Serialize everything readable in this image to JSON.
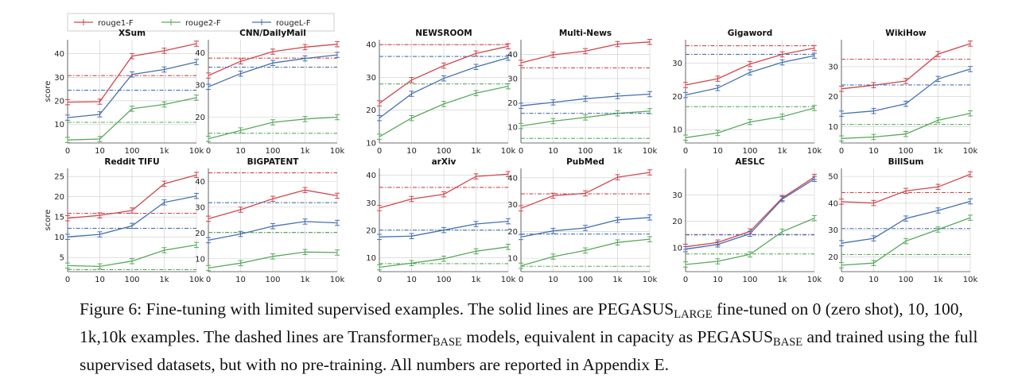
{
  "legend": [
    "rouge1-F",
    "rouge2-F",
    "rougeL-F"
  ],
  "colors": {
    "rouge1": "#d0474e",
    "rouge2": "#59a95c",
    "rougeL": "#4570b0",
    "grid": "#cccccc",
    "axis": "#444444"
  },
  "y_axis_label": "score",
  "x_ticks": [
    "0",
    "10",
    "100",
    "1k",
    "10k"
  ],
  "caption": {
    "label": "Figure 6:",
    "part1": " Fine-tuning with limited supervised examples. The solid lines are PEGASUS",
    "sub1": "LARGE",
    "part2": " fine-tuned on 0 (zero shot), 10, 100, 1k,10k examples. The dashed lines are Transformer",
    "sub2": "BASE",
    "part3": " models, equivalent in capacity as PEGASUS",
    "sub3": "BASE",
    "part4": " and trained using the full supervised datasets, but with no pre-training. All numbers are reported in Appendix E."
  },
  "chart_data": [
    {
      "type": "line",
      "title": "XSum",
      "x": [
        "0",
        "10",
        "100",
        "1k",
        "10k"
      ],
      "ylim": [
        2,
        46
      ],
      "yticks": [
        10,
        20,
        30,
        40
      ],
      "series": [
        {
          "name": "rouge1-F",
          "values": [
            19.4,
            19.6,
            39.0,
            41.3,
            44.3
          ],
          "baseline": [
            30.7
          ]
        },
        {
          "name": "rouge2-F",
          "values": [
            3.3,
            3.7,
            16.6,
            18.4,
            21.3
          ],
          "baseline": [
            10.8
          ]
        },
        {
          "name": "rougeL-F",
          "values": [
            12.8,
            14.2,
            31.2,
            33.3,
            36.5
          ],
          "baseline": [
            24.5
          ]
        }
      ]
    },
    {
      "type": "line",
      "title": "CNN/DailyMail",
      "x": [
        "0",
        "10",
        "100",
        "1k",
        "10k"
      ],
      "ylim": [
        12,
        44
      ],
      "yticks": [
        20,
        30,
        40
      ],
      "series": [
        {
          "name": "rouge1-F",
          "values": [
            32.9,
            37.3,
            40.3,
            41.7,
            42.6
          ],
          "baseline": [
            38.3
          ]
        },
        {
          "name": "rouge2-F",
          "values": [
            13.3,
            15.9,
            18.4,
            19.4,
            20.0
          ],
          "baseline": [
            15.0
          ]
        },
        {
          "name": "rougeL-F",
          "values": [
            29.4,
            33.5,
            36.8,
            38.2,
            39.3
          ],
          "baseline": [
            35.5
          ]
        }
      ]
    },
    {
      "type": "line",
      "title": "NEWSROOM",
      "x": [
        "0",
        "10",
        "100",
        "1k",
        "10k"
      ],
      "ylim": [
        10,
        41.5
      ],
      "yticks": [
        10,
        20,
        30,
        40
      ],
      "series": [
        {
          "name": "rouge1-F",
          "values": [
            22.1,
            29.2,
            33.6,
            37.3,
            39.5
          ],
          "baseline": [
            40.0
          ]
        },
        {
          "name": "rouge2-F",
          "values": [
            11.9,
            17.6,
            21.9,
            25.2,
            27.3
          ],
          "baseline": [
            28.0
          ]
        },
        {
          "name": "rougeL-F",
          "values": [
            17.6,
            25.0,
            29.7,
            33.2,
            36.0
          ],
          "baseline": [
            36.4
          ]
        }
      ]
    },
    {
      "type": "line",
      "title": "Multi-News",
      "x": [
        "0",
        "10",
        "100",
        "1k",
        "10k"
      ],
      "ylim": [
        3.5,
        46
      ],
      "yticks": [
        10,
        20,
        30,
        40
      ],
      "series": [
        {
          "name": "rouge1-F",
          "values": [
            36.5,
            39.8,
            41.3,
            44.2,
            45.1
          ],
          "baseline": [
            34.4
          ]
        },
        {
          "name": "rouge2-F",
          "values": [
            10.5,
            12.5,
            14.0,
            15.7,
            16.6
          ],
          "baseline": [
            5.4
          ]
        },
        {
          "name": "rougeL-F",
          "values": [
            18.8,
            20.2,
            21.7,
            22.8,
            23.6
          ],
          "baseline": [
            15.7
          ]
        }
      ]
    },
    {
      "type": "line",
      "title": "Gigaword",
      "x": [
        "0",
        "10",
        "100",
        "1k",
        "10k"
      ],
      "ylim": [
        6,
        37
      ],
      "yticks": [
        10,
        20,
        30
      ],
      "series": [
        {
          "name": "rouge1-F",
          "values": [
            23.4,
            25.3,
            29.7,
            32.6,
            34.5
          ],
          "baseline": [
            35.2
          ]
        },
        {
          "name": "rouge2-F",
          "values": [
            7.6,
            9.0,
            12.3,
            13.9,
            16.5
          ],
          "baseline": [
            16.9
          ]
        },
        {
          "name": "rougeL-F",
          "values": [
            20.4,
            22.5,
            27.2,
            30.2,
            32.2
          ],
          "baseline": [
            32.6
          ]
        }
      ]
    },
    {
      "type": "line",
      "title": "WikiHow",
      "x": [
        "0",
        "10",
        "100",
        "1k",
        "10k"
      ],
      "ylim": [
        4.5,
        39
      ],
      "yticks": [
        10,
        20,
        30
      ],
      "series": [
        {
          "name": "rouge1-F",
          "values": [
            22.6,
            23.8,
            25.2,
            34.2,
            37.7
          ],
          "baseline": [
            32.5
          ]
        },
        {
          "name": "rouge2-F",
          "values": [
            6.0,
            6.5,
            7.5,
            12.1,
            14.4
          ],
          "baseline": [
            10.7
          ]
        },
        {
          "name": "rougeL-F",
          "values": [
            14.3,
            15.2,
            17.6,
            25.9,
            29.2
          ],
          "baseline": [
            23.9
          ]
        }
      ]
    },
    {
      "type": "line",
      "title": "Reddit TIFU",
      "x": [
        "0",
        "10",
        "100",
        "1k",
        "10k"
      ],
      "ylim": [
        1.5,
        27
      ],
      "yticks": [
        5,
        10,
        15,
        20,
        25
      ],
      "series": [
        {
          "name": "rouge1-F",
          "values": [
            14.7,
            15.4,
            16.6,
            23.2,
            25.4
          ],
          "baseline": [
            15.9
          ]
        },
        {
          "name": "rouge2-F",
          "values": [
            3.0,
            2.8,
            4.1,
            6.8,
            8.1
          ],
          "baseline": [
            2.0
          ]
        },
        {
          "name": "rougeL-F",
          "values": [
            10.1,
            10.7,
            12.8,
            18.6,
            20.2
          ],
          "baseline": [
            12.2
          ]
        }
      ]
    },
    {
      "type": "line",
      "title": "BIGPATENT",
      "x": [
        "0",
        "10",
        "100",
        "1k",
        "10k"
      ],
      "ylim": [
        5,
        45
      ],
      "yticks": [
        10,
        20,
        30,
        40
      ],
      "series": [
        {
          "name": "rouge1-F",
          "values": [
            25.5,
            29.0,
            33.2,
            36.6,
            34.4
          ],
          "baseline": [
            43.3
          ]
        },
        {
          "name": "rouge2-F",
          "values": [
            6.4,
            8.3,
            10.9,
            12.6,
            12.4
          ],
          "baseline": [
            20.2
          ]
        },
        {
          "name": "rougeL-F",
          "values": [
            17.2,
            19.6,
            22.6,
            24.4,
            23.9
          ],
          "baseline": [
            31.7
          ]
        }
      ]
    },
    {
      "type": "line",
      "title": "arXiv",
      "x": [
        "0",
        "10",
        "100",
        "1k",
        "10k"
      ],
      "ylim": [
        5,
        42.5
      ],
      "yticks": [
        10,
        20,
        30,
        40
      ],
      "series": [
        {
          "name": "rouge1-F",
          "values": [
            28.1,
            31.4,
            33.1,
            39.6,
            40.4
          ],
          "baseline": [
            35.6
          ]
        },
        {
          "name": "rouge2-F",
          "values": [
            6.6,
            8.1,
            9.7,
            12.4,
            14.0
          ],
          "baseline": [
            7.9
          ]
        },
        {
          "name": "rougeL-F",
          "values": [
            17.6,
            17.9,
            20.1,
            22.3,
            23.3
          ],
          "baseline": [
            20.1
          ]
        }
      ]
    },
    {
      "type": "line",
      "title": "PubMed",
      "x": [
        "0",
        "10",
        "100",
        "1k",
        "10k"
      ],
      "ylim": [
        5,
        43.5
      ],
      "yticks": [
        10,
        20,
        30,
        40
      ],
      "series": [
        {
          "name": "rouge1-F",
          "values": [
            28.6,
            33.3,
            34.2,
            40.2,
            42.0
          ],
          "baseline": [
            34.0
          ]
        },
        {
          "name": "rouge2-F",
          "values": [
            7.2,
            10.6,
            12.9,
            15.9,
            17.1
          ],
          "baseline": [
            7.0
          ]
        },
        {
          "name": "rougeL-F",
          "values": [
            17.9,
            20.2,
            21.3,
            24.3,
            25.2
          ],
          "baseline": [
            19.0
          ]
        }
      ]
    },
    {
      "type": "line",
      "title": "AESLC",
      "x": [
        "0",
        "10",
        "100",
        "1k",
        "10k"
      ],
      "ylim": [
        1,
        40
      ],
      "yticks": [
        10,
        20,
        30
      ],
      "series": [
        {
          "name": "rouge1-F",
          "values": [
            10.4,
            12.0,
            16.2,
            28.8,
            36.8
          ],
          "baseline": [
            15.0
          ]
        },
        {
          "name": "rouge2-F",
          "values": [
            3.7,
            4.9,
            7.5,
            16.1,
            21.2
          ],
          "baseline": [
            7.7
          ]
        },
        {
          "name": "rougeL-F",
          "values": [
            9.5,
            11.3,
            15.3,
            28.4,
            36.0
          ],
          "baseline": [
            14.9
          ]
        }
      ]
    },
    {
      "type": "line",
      "title": "BillSum",
      "x": [
        "0",
        "10",
        "100",
        "1k",
        "10k"
      ],
      "ylim": [
        14.5,
        53
      ],
      "yticks": [
        20,
        30,
        40,
        50
      ],
      "series": [
        {
          "name": "rouge1-F",
          "values": [
            40.6,
            40.1,
            44.6,
            46.1,
            50.8
          ],
          "baseline": [
            44.0
          ]
        },
        {
          "name": "rouge2-F",
          "values": [
            16.9,
            17.7,
            25.9,
            30.2,
            34.6
          ],
          "baseline": [
            20.9
          ]
        },
        {
          "name": "rougeL-F",
          "values": [
            25.1,
            26.9,
            34.3,
            37.3,
            40.7
          ],
          "baseline": [
            30.6
          ]
        }
      ]
    }
  ]
}
